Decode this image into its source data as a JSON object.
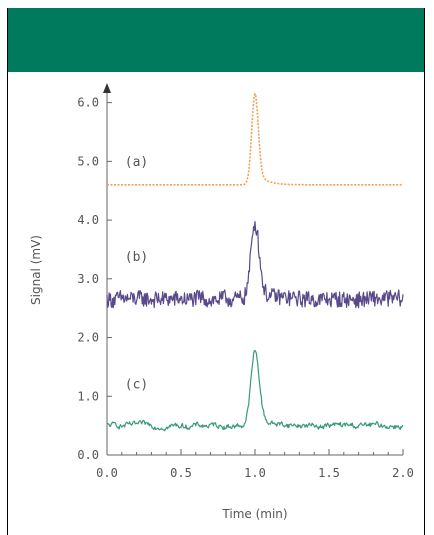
{
  "colors": {
    "header_band": "#007a5c",
    "axis": "#666666",
    "text": "#555555"
  },
  "chart_data": {
    "type": "line",
    "xlabel": "Time (min)",
    "ylabel": "Signal (mV)",
    "xlim": [
      0.0,
      2.0
    ],
    "ylim": [
      0.0,
      6.3
    ],
    "x_ticks": [
      "0.0",
      "0.5",
      "1.0",
      "1.5",
      "2.0"
    ],
    "y_ticks": [
      "0.0",
      "1.0",
      "2.0",
      "3.0",
      "4.0",
      "5.0",
      "6.0"
    ],
    "grid": false,
    "series": [
      {
        "label": "(a)",
        "color": "#f0a050",
        "baseline": 4.6,
        "noise": 0.0,
        "peak_time": 1.0,
        "peak_height": 1.55,
        "peak_width": 0.022,
        "label_x": 0.12,
        "label_y": 4.92
      },
      {
        "label": "(b)",
        "color": "#5a4a8a",
        "baseline": 2.65,
        "noise": 0.16,
        "peak_time": 1.0,
        "peak_height": 1.3,
        "peak_width": 0.028,
        "label_x": 0.12,
        "label_y": 3.3
      },
      {
        "label": "(c)",
        "color": "#3a9a78",
        "baseline": 0.5,
        "noise": 0.07,
        "peak_time": 1.0,
        "peak_height": 1.25,
        "peak_width": 0.028,
        "label_x": 0.12,
        "label_y": 1.13
      }
    ]
  }
}
